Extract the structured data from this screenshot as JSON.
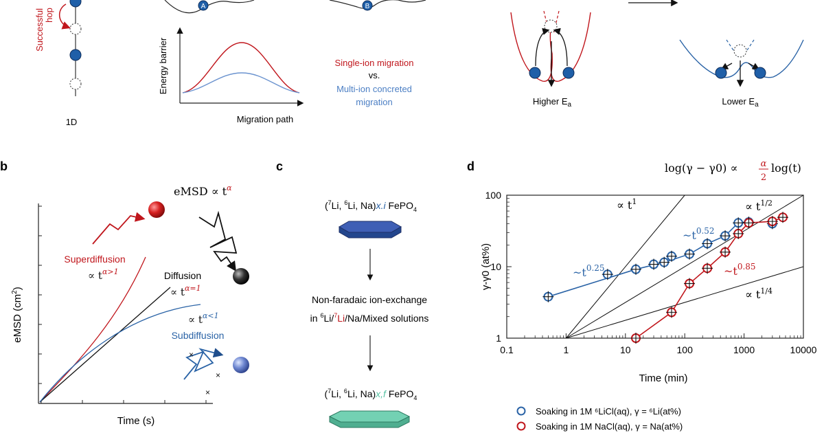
{
  "colors": {
    "red": "#c0161c",
    "blue": "#2a63a6",
    "dark_blue": "#1f4e8c",
    "navy": "#23468d",
    "teal": "#58c3a4",
    "grey": "#999999"
  },
  "top": {
    "hop_label_1": "Successful",
    "hop_label_2": "hop",
    "dim_label": "1D",
    "site_a": "A",
    "site_b": "B",
    "energy_axis": "Energy barrier",
    "path_axis": "Migration path",
    "single_ion": "Single-ion migration",
    "vs": "vs.",
    "multi_ion_1": "Multi-ion concreted",
    "multi_ion_2": "migration",
    "higher_ea": "Higher E",
    "lower_ea": "Lower E",
    "ea_sub": "a"
  },
  "panel_b": {
    "label": "b",
    "emsd_title": "eMSD ∝ t",
    "emsd_exp": "α",
    "superdiffusion": "Superdiffusion",
    "super_exp": "∝ t",
    "super_sup": "α>1",
    "diffusion": "Diffusion",
    "diff_sup": "α=1",
    "sub_sup": "α<1",
    "subdiffusion": "Subdiffusion",
    "ylabel": "eMSD (cm",
    "ylabel_sup": "2",
    "xlabel": "Time (s)"
  },
  "panel_c": {
    "label": "c",
    "top_formula_pre": "(",
    "top_formula_iso": "7",
    "top_formula_mid": "Li, ",
    "top_formula_iso2": "6",
    "top_formula_rest": "Li, Na)",
    "top_formula_x": "x.i",
    "top_formula_end": " FePO",
    "sub4": "4",
    "process_line1": "Non-faradaic ion-exchange",
    "process_line2_a": "in ",
    "process_line2_b": "6",
    "process_line2_c": "Li/",
    "process_line2_d": "7",
    "process_line2_e": "Li",
    "process_line2_f": "/Na/Mixed solutions",
    "bottom_formula_x": "x,f"
  },
  "panel_d": {
    "label": "d",
    "equation": "log(γ − γ0) ∝",
    "eq_frac_num": "α",
    "eq_frac_den": "2",
    "eq_tail": "log(t)",
    "ylabel": "γ-γ0 (at%)",
    "xlabel": "Time (min)",
    "line_t1": "∝ t",
    "line_t1_sup": "1",
    "line_t12_sup": "1/2",
    "line_t14_sup": "1/4",
    "fit_blue_a": "~t",
    "fit_blue_a_sup": "0.25",
    "fit_blue_b_sup": "0.52",
    "fit_red_sup": "0.85",
    "legend_blue": "Soaking in 1M ⁶LiCl(aq), γ = ⁶Li(at%)",
    "legend_red": "Soaking in 1M NaCl(aq), γ = Na(at%)"
  },
  "chart_data": {
    "type": "scatter",
    "xlabel": "Time (min)",
    "ylabel": "γ-γ0 (at%)",
    "xscale": "log",
    "yscale": "log",
    "xlim": [
      0.1,
      10000
    ],
    "ylim": [
      1,
      100
    ],
    "x_ticks": [
      "0.1",
      "1",
      "10",
      "100",
      "1000",
      "10000"
    ],
    "y_ticks": [
      "1",
      "10",
      "100"
    ],
    "series": [
      {
        "name": "Soaking in 1M ⁶LiCl(aq), γ = ⁶Li(at%)",
        "color": "#2a63a6",
        "x": [
          0.5,
          5,
          15,
          30,
          45,
          60,
          120,
          240,
          480,
          800,
          1200,
          3000
        ],
        "y": [
          3.8,
          7.8,
          9.2,
          10.8,
          11.5,
          14,
          15,
          21,
          27,
          41,
          42,
          40
        ]
      },
      {
        "name": "Soaking in 1M NaCl(aq), γ = Na(at%)",
        "color": "#c0161c",
        "x": [
          15,
          60,
          120,
          240,
          480,
          800,
          1200,
          3000,
          4500
        ],
        "y": [
          1.0,
          2.3,
          5.8,
          9.5,
          16,
          29,
          41,
          43,
          49
        ]
      }
    ],
    "reference_lines": [
      "∝ t¹",
      "∝ t^1/2",
      "∝ t^1/4"
    ],
    "fits": [
      "~t^0.25",
      "~t^0.52",
      "~t^0.85"
    ]
  }
}
